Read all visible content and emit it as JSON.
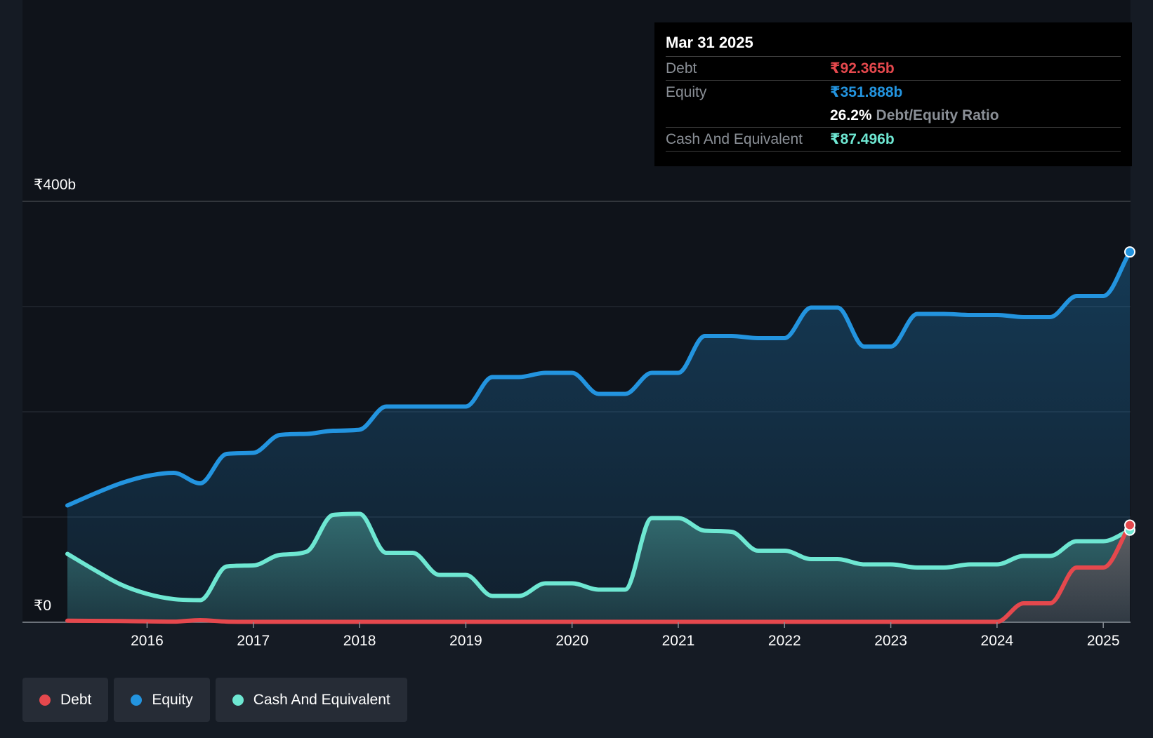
{
  "tooltip": {
    "date": "Mar 31 2025",
    "debt_label": "Debt",
    "debt_value": "₹92.365b",
    "equity_label": "Equity",
    "equity_value": "₹351.888b",
    "ratio_value": "26.2%",
    "ratio_label": "Debt/Equity Ratio",
    "cash_label": "Cash And Equivalent",
    "cash_value": "₹87.496b"
  },
  "legend": [
    {
      "label": "Debt",
      "color": "#e5484d"
    },
    {
      "label": "Equity",
      "color": "#2394df"
    },
    {
      "label": "Cash And Equivalent",
      "color": "#6ee7d2"
    }
  ],
  "colors": {
    "debt": "#e5484d",
    "equity": "#2394df",
    "cash": "#6ee7d2",
    "background": "#151b24"
  },
  "chart_data": {
    "type": "area",
    "y_tick_labels": [
      "₹0",
      "₹400b"
    ],
    "ylim": [
      0,
      400
    ],
    "y_unit": "₹b",
    "xlim": [
      2015.25,
      2025.25
    ],
    "x_ticks": [
      2016,
      2017,
      2018,
      2019,
      2020,
      2021,
      2022,
      2023,
      2024,
      2025
    ],
    "gridlines": [
      0,
      100,
      200,
      300,
      400
    ],
    "legend_position": "bottom-left",
    "series": [
      {
        "name": "Debt",
        "points": [
          [
            2015.25,
            1.5
          ],
          [
            2015.75,
            1.2
          ],
          [
            2016.25,
            0.6
          ],
          [
            2016.5,
            2.0
          ],
          [
            2016.75,
            0.6
          ],
          [
            2017.0,
            0.4
          ],
          [
            2018.0,
            0.4
          ],
          [
            2019.0,
            0.4
          ],
          [
            2020.0,
            0.4
          ],
          [
            2021.0,
            0.4
          ],
          [
            2022.0,
            0.4
          ],
          [
            2023.0,
            0.4
          ],
          [
            2023.75,
            0.4
          ],
          [
            2024.0,
            0.4
          ],
          [
            2024.25,
            18.0
          ],
          [
            2024.5,
            18.0
          ],
          [
            2024.75,
            52.0
          ],
          [
            2025.0,
            52.0
          ],
          [
            2025.25,
            92.365
          ]
        ]
      },
      {
        "name": "Equity",
        "points": [
          [
            2015.25,
            111
          ],
          [
            2015.5,
            122
          ],
          [
            2015.75,
            132
          ],
          [
            2016.0,
            139
          ],
          [
            2016.25,
            142
          ],
          [
            2016.5,
            132
          ],
          [
            2016.75,
            160
          ],
          [
            2017.0,
            161
          ],
          [
            2017.25,
            178
          ],
          [
            2017.5,
            179
          ],
          [
            2017.75,
            182
          ],
          [
            2018.0,
            183
          ],
          [
            2018.25,
            205
          ],
          [
            2018.5,
            205
          ],
          [
            2018.75,
            205
          ],
          [
            2019.0,
            205
          ],
          [
            2019.25,
            233
          ],
          [
            2019.5,
            233
          ],
          [
            2019.75,
            237
          ],
          [
            2020.0,
            237
          ],
          [
            2020.25,
            217
          ],
          [
            2020.5,
            217
          ],
          [
            2020.75,
            237
          ],
          [
            2021.0,
            237
          ],
          [
            2021.25,
            272
          ],
          [
            2021.5,
            272
          ],
          [
            2021.75,
            270
          ],
          [
            2022.0,
            270
          ],
          [
            2022.25,
            299
          ],
          [
            2022.5,
            299
          ],
          [
            2022.75,
            262
          ],
          [
            2023.0,
            262
          ],
          [
            2023.25,
            293
          ],
          [
            2023.5,
            293
          ],
          [
            2023.75,
            292
          ],
          [
            2024.0,
            292
          ],
          [
            2024.25,
            290
          ],
          [
            2024.5,
            290
          ],
          [
            2024.75,
            310
          ],
          [
            2025.0,
            310
          ],
          [
            2025.25,
            351.888
          ]
        ]
      },
      {
        "name": "Cash And Equivalent",
        "points": [
          [
            2015.25,
            65
          ],
          [
            2015.5,
            50
          ],
          [
            2015.75,
            36
          ],
          [
            2016.0,
            27
          ],
          [
            2016.25,
            22
          ],
          [
            2016.5,
            21
          ],
          [
            2016.75,
            53
          ],
          [
            2017.0,
            54
          ],
          [
            2017.25,
            64
          ],
          [
            2017.5,
            67
          ],
          [
            2017.75,
            102
          ],
          [
            2018.0,
            103
          ],
          [
            2018.25,
            66
          ],
          [
            2018.5,
            66
          ],
          [
            2018.75,
            45
          ],
          [
            2019.0,
            45
          ],
          [
            2019.25,
            25
          ],
          [
            2019.5,
            25
          ],
          [
            2019.75,
            37
          ],
          [
            2020.0,
            37
          ],
          [
            2020.25,
            31
          ],
          [
            2020.5,
            31
          ],
          [
            2020.75,
            99
          ],
          [
            2021.0,
            99
          ],
          [
            2021.25,
            87
          ],
          [
            2021.5,
            86
          ],
          [
            2021.75,
            68
          ],
          [
            2022.0,
            68
          ],
          [
            2022.25,
            60
          ],
          [
            2022.5,
            60
          ],
          [
            2022.75,
            55
          ],
          [
            2023.0,
            55
          ],
          [
            2023.25,
            52
          ],
          [
            2023.5,
            52
          ],
          [
            2023.75,
            55
          ],
          [
            2024.0,
            55
          ],
          [
            2024.25,
            63
          ],
          [
            2024.5,
            63
          ],
          [
            2024.75,
            77
          ],
          [
            2025.0,
            77
          ],
          [
            2025.25,
            87.496
          ]
        ]
      }
    ]
  }
}
